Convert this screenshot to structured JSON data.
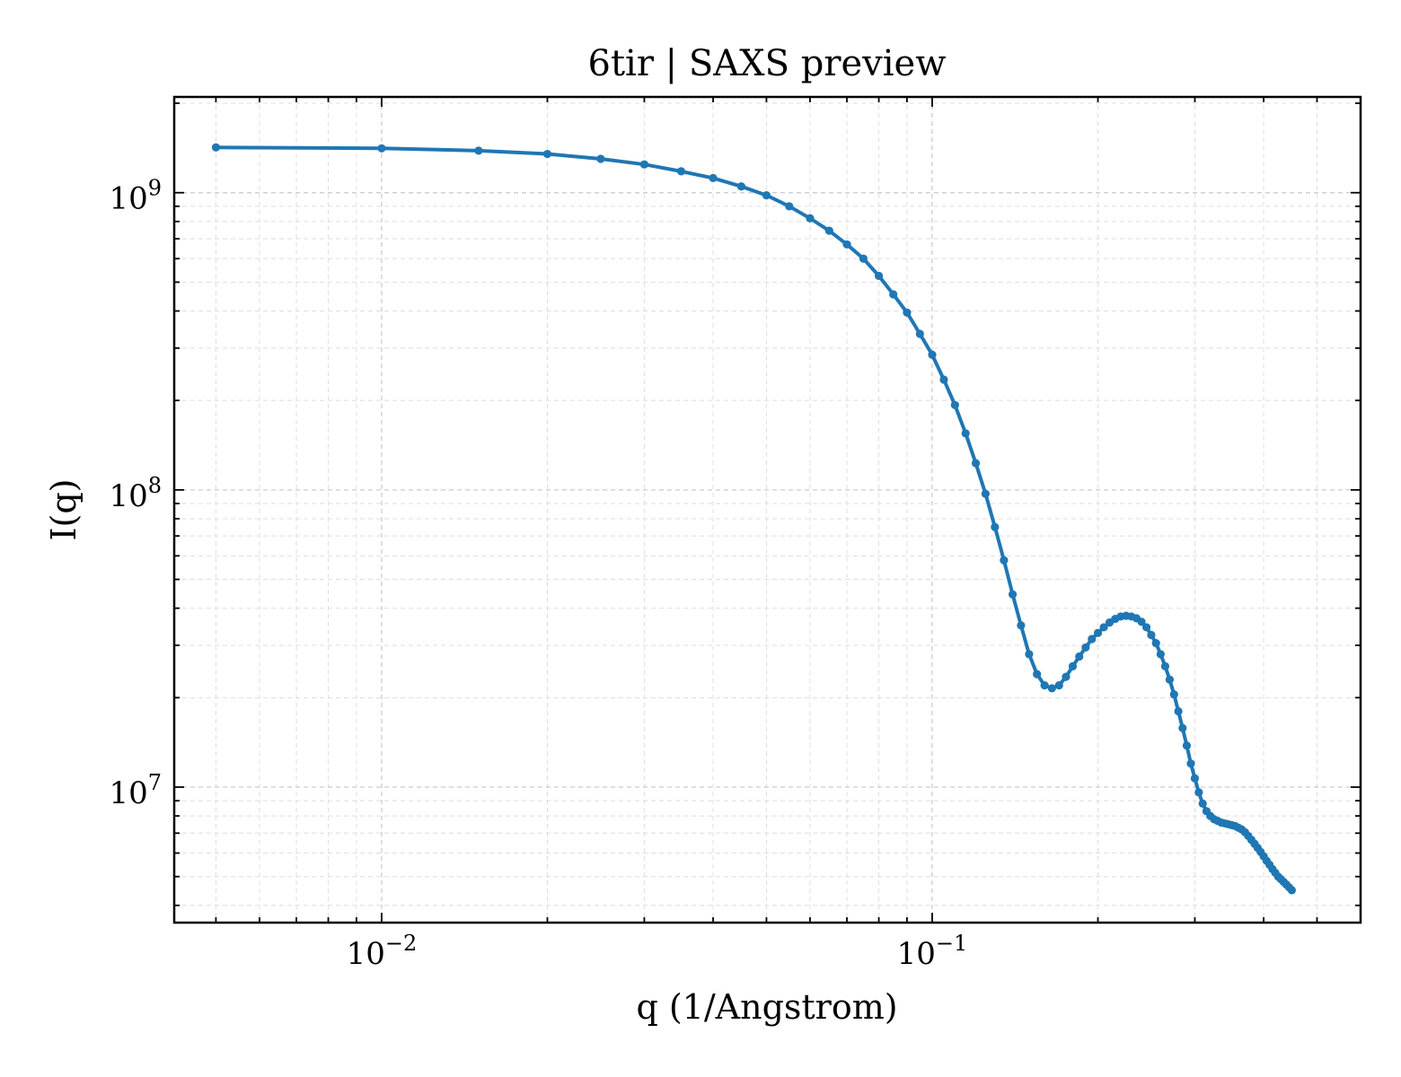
{
  "chart_data": {
    "type": "line",
    "title": "6tir | SAXS preview",
    "xlabel": "q (1/Angstrom)",
    "ylabel": "I(q)",
    "x_scale": "log",
    "y_scale": "log",
    "xlim": [
      0.0042,
      0.6
    ],
    "ylim": [
      3500000.0,
      2100000000.0
    ],
    "grid": true,
    "legend": "none",
    "x_ticks": [
      {
        "value": 0.01,
        "base": "10",
        "exp": "−2"
      },
      {
        "value": 0.1,
        "base": "10",
        "exp": "−1"
      }
    ],
    "y_ticks": [
      {
        "value": 10000000,
        "base": "10",
        "exp": "7"
      },
      {
        "value": 100000000,
        "base": "10",
        "exp": "8"
      },
      {
        "value": 1000000000,
        "base": "10",
        "exp": "9"
      }
    ],
    "series": [
      {
        "color": "#1f77b4",
        "points": [
          [
            0.005,
            1420000000.0
          ],
          [
            0.01,
            1410000000.0
          ],
          [
            0.015,
            1385000000.0
          ],
          [
            0.02,
            1350000000.0
          ],
          [
            0.025,
            1300000000.0
          ],
          [
            0.03,
            1245000000.0
          ],
          [
            0.035,
            1180000000.0
          ],
          [
            0.04,
            1120000000.0
          ],
          [
            0.045,
            1050000000.0
          ],
          [
            0.05,
            980000000.0
          ],
          [
            0.055,
            900000000.0
          ],
          [
            0.06,
            820000000.0
          ],
          [
            0.065,
            745000000.0
          ],
          [
            0.07,
            670000000.0
          ],
          [
            0.075,
            600000000.0
          ],
          [
            0.08,
            525000000.0
          ],
          [
            0.085,
            455000000.0
          ],
          [
            0.09,
            395000000.0
          ],
          [
            0.095,
            335000000.0
          ],
          [
            0.1,
            285000000.0
          ],
          [
            0.105,
            235000000.0
          ],
          [
            0.11,
            193000000.0
          ],
          [
            0.115,
            155000000.0
          ],
          [
            0.12,
            123000000.0
          ],
          [
            0.125,
            97000000.0
          ],
          [
            0.13,
            75000000.0
          ],
          [
            0.135,
            58000000.0
          ],
          [
            0.14,
            44500000.0
          ],
          [
            0.145,
            35000000.0
          ],
          [
            0.15,
            28000000.0
          ],
          [
            0.155,
            24000000.0
          ],
          [
            0.16,
            22000000.0
          ],
          [
            0.165,
            21500000.0
          ],
          [
            0.17,
            22000000.0
          ],
          [
            0.175,
            23500000.0
          ],
          [
            0.18,
            25500000.0
          ],
          [
            0.185,
            27500000.0
          ],
          [
            0.19,
            29500000.0
          ],
          [
            0.195,
            31500000.0
          ],
          [
            0.2,
            33000000.0
          ],
          [
            0.205,
            34500000.0
          ],
          [
            0.21,
            35800000.0
          ],
          [
            0.215,
            36800000.0
          ],
          [
            0.22,
            37500000.0
          ],
          [
            0.225,
            37700000.0
          ],
          [
            0.23,
            37500000.0
          ],
          [
            0.235,
            37000000.0
          ],
          [
            0.24,
            36000000.0
          ],
          [
            0.245,
            34500000.0
          ],
          [
            0.25,
            32500000.0
          ],
          [
            0.255,
            30500000.0
          ],
          [
            0.26,
            28000000.0
          ],
          [
            0.265,
            25500000.0
          ],
          [
            0.27,
            23000000.0
          ],
          [
            0.275,
            20500000.0
          ],
          [
            0.28,
            18000000.0
          ],
          [
            0.285,
            15800000.0
          ],
          [
            0.29,
            13800000.0
          ],
          [
            0.295,
            12000000.0
          ],
          [
            0.3,
            10700000.0
          ],
          [
            0.305,
            9600000.0
          ],
          [
            0.31,
            8800000.0
          ],
          [
            0.315,
            8300000.0
          ],
          [
            0.32,
            8000000.0
          ],
          [
            0.325,
            7800000.0
          ],
          [
            0.33,
            7700000.0
          ],
          [
            0.335,
            7600000.0
          ],
          [
            0.34,
            7550000.0
          ],
          [
            0.345,
            7500000.0
          ],
          [
            0.35,
            7450000.0
          ],
          [
            0.355,
            7400000.0
          ],
          [
            0.36,
            7300000.0
          ],
          [
            0.365,
            7200000.0
          ],
          [
            0.37,
            7050000.0
          ],
          [
            0.375,
            6850000.0
          ],
          [
            0.38,
            6650000.0
          ],
          [
            0.385,
            6450000.0
          ],
          [
            0.39,
            6250000.0
          ],
          [
            0.395,
            6050000.0
          ],
          [
            0.4,
            5850000.0
          ],
          [
            0.405,
            5650000.0
          ],
          [
            0.41,
            5480000.0
          ],
          [
            0.415,
            5300000.0
          ],
          [
            0.42,
            5150000.0
          ],
          [
            0.425,
            5000000.0
          ],
          [
            0.43,
            4900000.0
          ],
          [
            0.435,
            4800000.0
          ],
          [
            0.44,
            4700000.0
          ],
          [
            0.445,
            4600000.0
          ],
          [
            0.45,
            4500000.0
          ]
        ]
      }
    ]
  }
}
